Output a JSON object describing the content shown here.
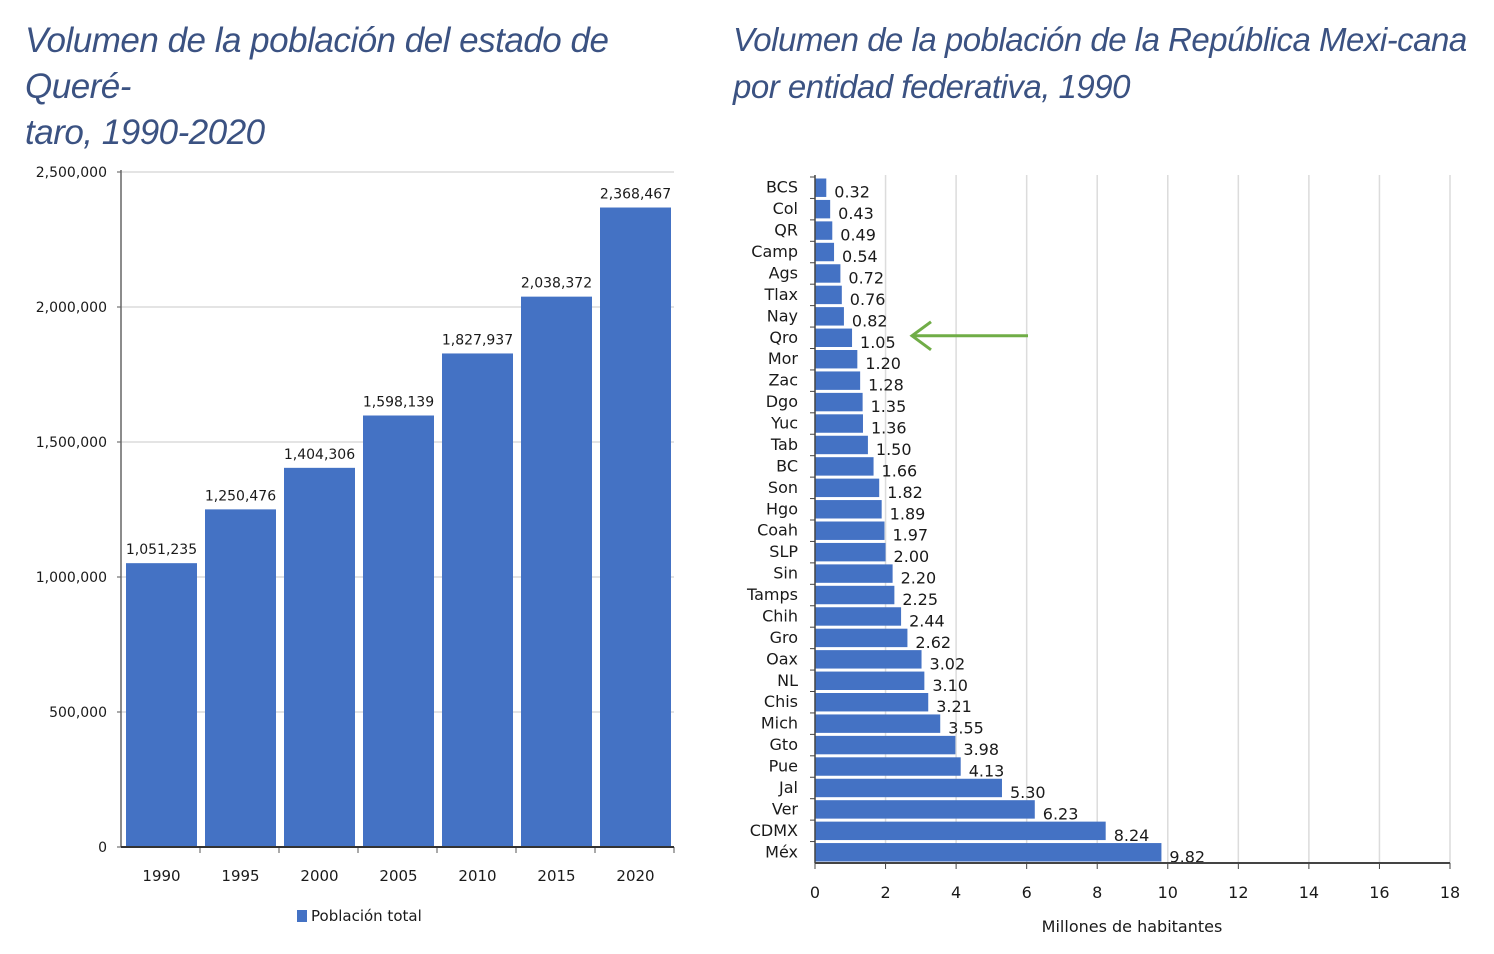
{
  "chart_data": [
    {
      "type": "bar",
      "title": "Volumen de la población del estado de Queré-taro, 1990-2020",
      "title_lines": [
        "Volumen de la población del estado de Queré-",
        "taro, 1990-2020"
      ],
      "categories": [
        "1990",
        "1995",
        "2000",
        "2005",
        "2010",
        "2015",
        "2020"
      ],
      "series": [
        {
          "name": "Población total",
          "values": [
            1051235,
            1250476,
            1404306,
            1598139,
            1827937,
            2038372,
            2368467
          ]
        }
      ],
      "data_labels": [
        "1,051,235",
        "1,250,476",
        "1,404,306",
        "1,598,139",
        "1,827,937",
        "2,038,372",
        "2,368,467"
      ],
      "y_ticks": [
        0,
        500000,
        1000000,
        1500000,
        2000000,
        2500000
      ],
      "y_tick_labels": [
        "0",
        "500,000",
        "1,000,000",
        "1,500,000",
        "2,000,000",
        "2,500,000"
      ],
      "ylim": [
        0,
        2500000
      ],
      "grid": true,
      "legend": "bottom",
      "xlabel": "",
      "ylabel": "",
      "color": "#4472c4"
    },
    {
      "type": "bar",
      "orientation": "horizontal",
      "title": "Volumen de la población de la República Mexi-cana por entidad federativa, 1990",
      "title_lines": [
        "Volumen de la población de la República Mexi-",
        "cana por entidad federativa, 1990"
      ],
      "categories": [
        "BCS",
        "Col",
        "QR",
        "Camp",
        "Ags",
        "Tlax",
        "Nay",
        "Qro",
        "Mor",
        "Zac",
        "Dgo",
        "Yuc",
        "Tab",
        "BC",
        "Son",
        "Hgo",
        "Coah",
        "SLP",
        "Sin",
        "Tamps",
        "Chih",
        "Gro",
        "Oax",
        "NL",
        "Chis",
        "Mich",
        "Gto",
        "Pue",
        "Jal",
        "Ver",
        "CDMX",
        "Méx"
      ],
      "values": [
        0.32,
        0.43,
        0.49,
        0.54,
        0.72,
        0.76,
        0.82,
        1.05,
        1.2,
        1.28,
        1.35,
        1.36,
        1.5,
        1.66,
        1.82,
        1.89,
        1.97,
        2.0,
        2.2,
        2.25,
        2.44,
        2.62,
        3.02,
        3.1,
        3.21,
        3.55,
        3.98,
        4.13,
        5.3,
        6.23,
        8.24,
        9.82
      ],
      "data_labels": [
        "0.32",
        "0.43",
        "0.49",
        "0.54",
        "0.72",
        "0.76",
        "0.82",
        "1.05",
        "1.20",
        "1.28",
        "1.35",
        "1.36",
        "1.50",
        "1.66",
        "1.82",
        "1.89",
        "1.97",
        "2.00",
        "2.20",
        "2.25",
        "2.44",
        "2.62",
        "3.02",
        "3.10",
        "3.21",
        "3.55",
        "3.98",
        "4.13",
        "5.30",
        "6.23",
        "8.24",
        "9.82"
      ],
      "x_ticks": [
        0,
        2,
        4,
        6,
        8,
        10,
        12,
        14,
        16,
        18
      ],
      "x_tick_labels": [
        "0",
        "2",
        "4",
        "6",
        "8",
        "10",
        "12",
        "14",
        "16",
        "18"
      ],
      "xlim": [
        0,
        18
      ],
      "xlabel": "Millones de habitantes",
      "ylabel": "",
      "grid": true,
      "annotation": {
        "type": "arrow",
        "target": "Qro",
        "color": "#70ad47"
      },
      "color": "#4472c4"
    }
  ]
}
